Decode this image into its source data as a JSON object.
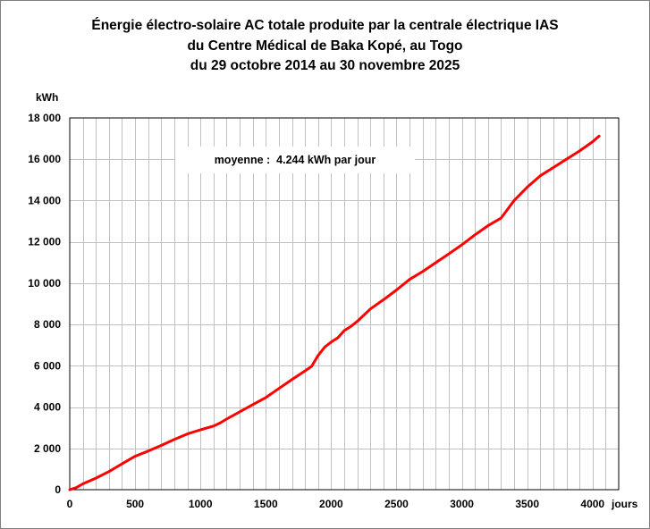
{
  "colors": {
    "line": "#ff0000",
    "grid": "#c0c0c0",
    "frame": "#7f7f7f"
  },
  "chart_data": {
    "type": "line",
    "title_lines": [
      "Énergie électro-solaire AC totale produite par la centrale électrique IAS",
      "du Centre Médical de Baka Kopé, au Togo",
      "du 29 octobre 2014 au 30 novembre 2025"
    ],
    "xlabel": "jours",
    "ylabel": "kWh",
    "xlim": [
      0,
      4200
    ],
    "ylim": [
      0,
      18000
    ],
    "x_ticks": [
      0,
      500,
      1000,
      1500,
      2000,
      2500,
      3000,
      3500,
      4000
    ],
    "y_ticks": [
      0,
      2000,
      4000,
      6000,
      8000,
      10000,
      12000,
      14000,
      16000,
      18000
    ],
    "x_tick_labels": [
      "0",
      "500",
      "1000",
      "1500",
      "2000",
      "2500",
      "3000",
      "3500",
      "4000"
    ],
    "y_tick_labels": [
      "0",
      "2 000",
      "4 000",
      "6 000",
      "8 000",
      "10 000",
      "12 000",
      "14 000",
      "16 000",
      "18 000"
    ],
    "grid": true,
    "annotation": "moyenne :  4.244 kWh par jour",
    "series": [
      {
        "x": [
          0,
          50,
          100,
          200,
          300,
          400,
          500,
          600,
          700,
          800,
          900,
          1000,
          1100,
          1150,
          1200,
          1300,
          1400,
          1500,
          1600,
          1700,
          1800,
          1850,
          1900,
          1950,
          2000,
          2050,
          2100,
          2150,
          2200,
          2300,
          2400,
          2500,
          2600,
          2700,
          2800,
          2900,
          3000,
          3100,
          3200,
          3300,
          3400,
          3500,
          3600,
          3700,
          3800,
          3900,
          4000,
          4050
        ],
        "y": [
          0,
          100,
          280,
          560,
          880,
          1250,
          1620,
          1870,
          2140,
          2430,
          2700,
          2900,
          3080,
          3230,
          3420,
          3770,
          4120,
          4460,
          4900,
          5330,
          5750,
          5970,
          6500,
          6900,
          7150,
          7350,
          7700,
          7900,
          8150,
          8750,
          9200,
          9670,
          10180,
          10560,
          10990,
          11420,
          11860,
          12340,
          12780,
          13150,
          14000,
          14650,
          15200,
          15600,
          16000,
          16400,
          16850,
          17120
        ]
      }
    ]
  }
}
